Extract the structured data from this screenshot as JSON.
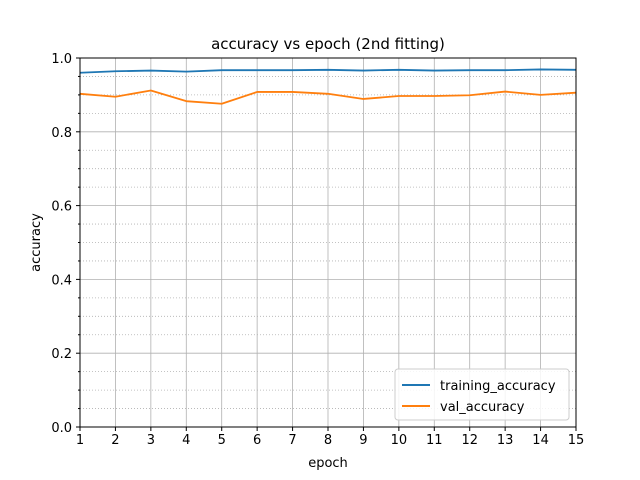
{
  "chart_data": {
    "type": "line",
    "title": "accuracy vs epoch (2nd fitting)",
    "xlabel": "epoch",
    "ylabel": "accuracy",
    "xlim": [
      1,
      15
    ],
    "ylim": [
      0.0,
      1.0
    ],
    "x": [
      1,
      2,
      3,
      4,
      5,
      6,
      7,
      8,
      9,
      10,
      11,
      12,
      13,
      14,
      15
    ],
    "xticks": [
      "1",
      "2",
      "3",
      "4",
      "5",
      "6",
      "7",
      "8",
      "9",
      "10",
      "11",
      "12",
      "13",
      "14",
      "15"
    ],
    "yticks": [
      "0.0",
      "0.2",
      "0.4",
      "0.6",
      "0.8",
      "1.0"
    ],
    "yticks_minor": [
      0.05,
      0.1,
      0.15,
      0.25,
      0.3,
      0.35,
      0.45,
      0.5,
      0.55,
      0.65,
      0.7,
      0.75,
      0.85,
      0.9,
      0.95
    ],
    "grid": true,
    "legend_position": "lower-right",
    "series": [
      {
        "name": "training_accuracy",
        "color": "#1f77b4",
        "values": [
          0.96,
          0.964,
          0.966,
          0.963,
          0.967,
          0.967,
          0.967,
          0.968,
          0.966,
          0.968,
          0.966,
          0.967,
          0.967,
          0.969,
          0.968
        ]
      },
      {
        "name": "val_accuracy",
        "color": "#ff7f0e",
        "values": [
          0.903,
          0.895,
          0.912,
          0.883,
          0.876,
          0.908,
          0.908,
          0.903,
          0.889,
          0.897,
          0.897,
          0.899,
          0.909,
          0.9,
          0.906
        ]
      }
    ]
  }
}
